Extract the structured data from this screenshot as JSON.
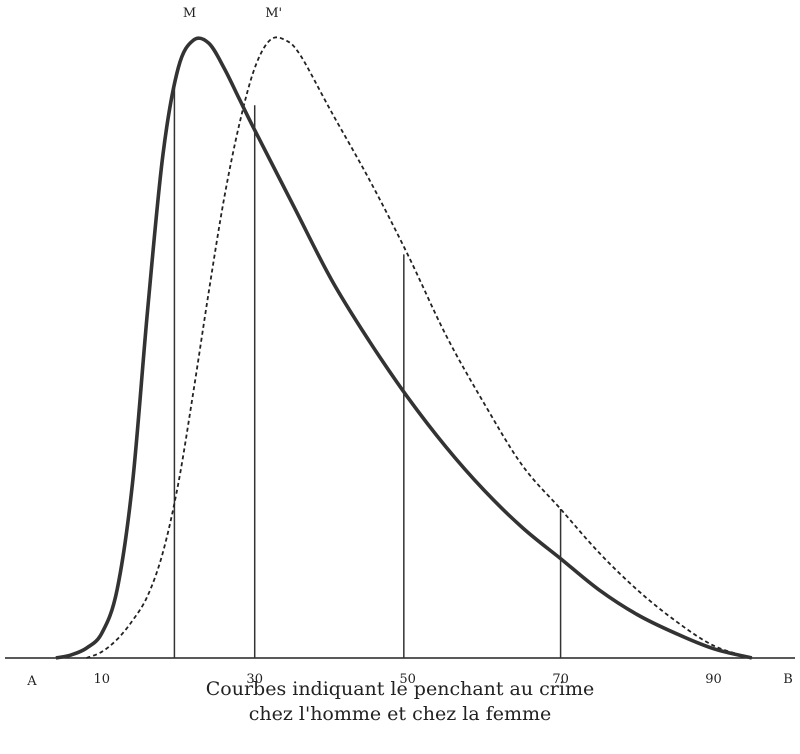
{
  "chart_data": {
    "type": "line",
    "title": "",
    "caption_line1": "Courbes indiquant le penchant au crime",
    "caption_line2": "chez l'homme et chez la femme",
    "axis_start_label": "A",
    "axis_end_label": "B",
    "x_ticks": [
      "10",
      "30",
      "50",
      "70",
      "90"
    ],
    "x_tick_values": [
      10,
      30,
      50,
      70,
      90
    ],
    "xlim": [
      -2,
      100
    ],
    "ylim": [
      0,
      1
    ],
    "grid": false,
    "peak_labels": [
      {
        "text": "M",
        "x": 22
      },
      {
        "text": "M'",
        "x": 33
      }
    ],
    "series": [
      {
        "style": "solid",
        "x": [
          4,
          6,
          8,
          10,
          12,
          14,
          16,
          18,
          20,
          22,
          24,
          26,
          28,
          30,
          35,
          40,
          45,
          50,
          55,
          60,
          65,
          70,
          75,
          80,
          85,
          90,
          95
        ],
        "y": [
          0.0,
          0.005,
          0.016,
          0.04,
          0.11,
          0.28,
          0.56,
          0.81,
          0.95,
          0.995,
          0.99,
          0.95,
          0.9,
          0.85,
          0.73,
          0.61,
          0.51,
          0.42,
          0.34,
          0.27,
          0.21,
          0.16,
          0.11,
          0.07,
          0.04,
          0.015,
          0.0
        ]
      },
      {
        "style": "dashed",
        "x": [
          8,
          10,
          12,
          14,
          16,
          18,
          20,
          22,
          24,
          26,
          28,
          30,
          32,
          34,
          36,
          40,
          45,
          50,
          55,
          60,
          65,
          70,
          75,
          80,
          85,
          90,
          95
        ],
        "y": [
          0.0,
          0.01,
          0.03,
          0.06,
          0.1,
          0.17,
          0.28,
          0.43,
          0.59,
          0.74,
          0.86,
          0.95,
          0.995,
          0.995,
          0.97,
          0.88,
          0.77,
          0.65,
          0.52,
          0.41,
          0.31,
          0.24,
          0.17,
          0.11,
          0.06,
          0.02,
          0.0
        ]
      }
    ],
    "vertical_lines": [
      {
        "x": 19.5,
        "y": 0.93
      },
      {
        "x": 30,
        "y": 0.89
      },
      {
        "x": 49.5,
        "y": 0.65
      },
      {
        "x": 70,
        "y": 0.24
      }
    ]
  }
}
